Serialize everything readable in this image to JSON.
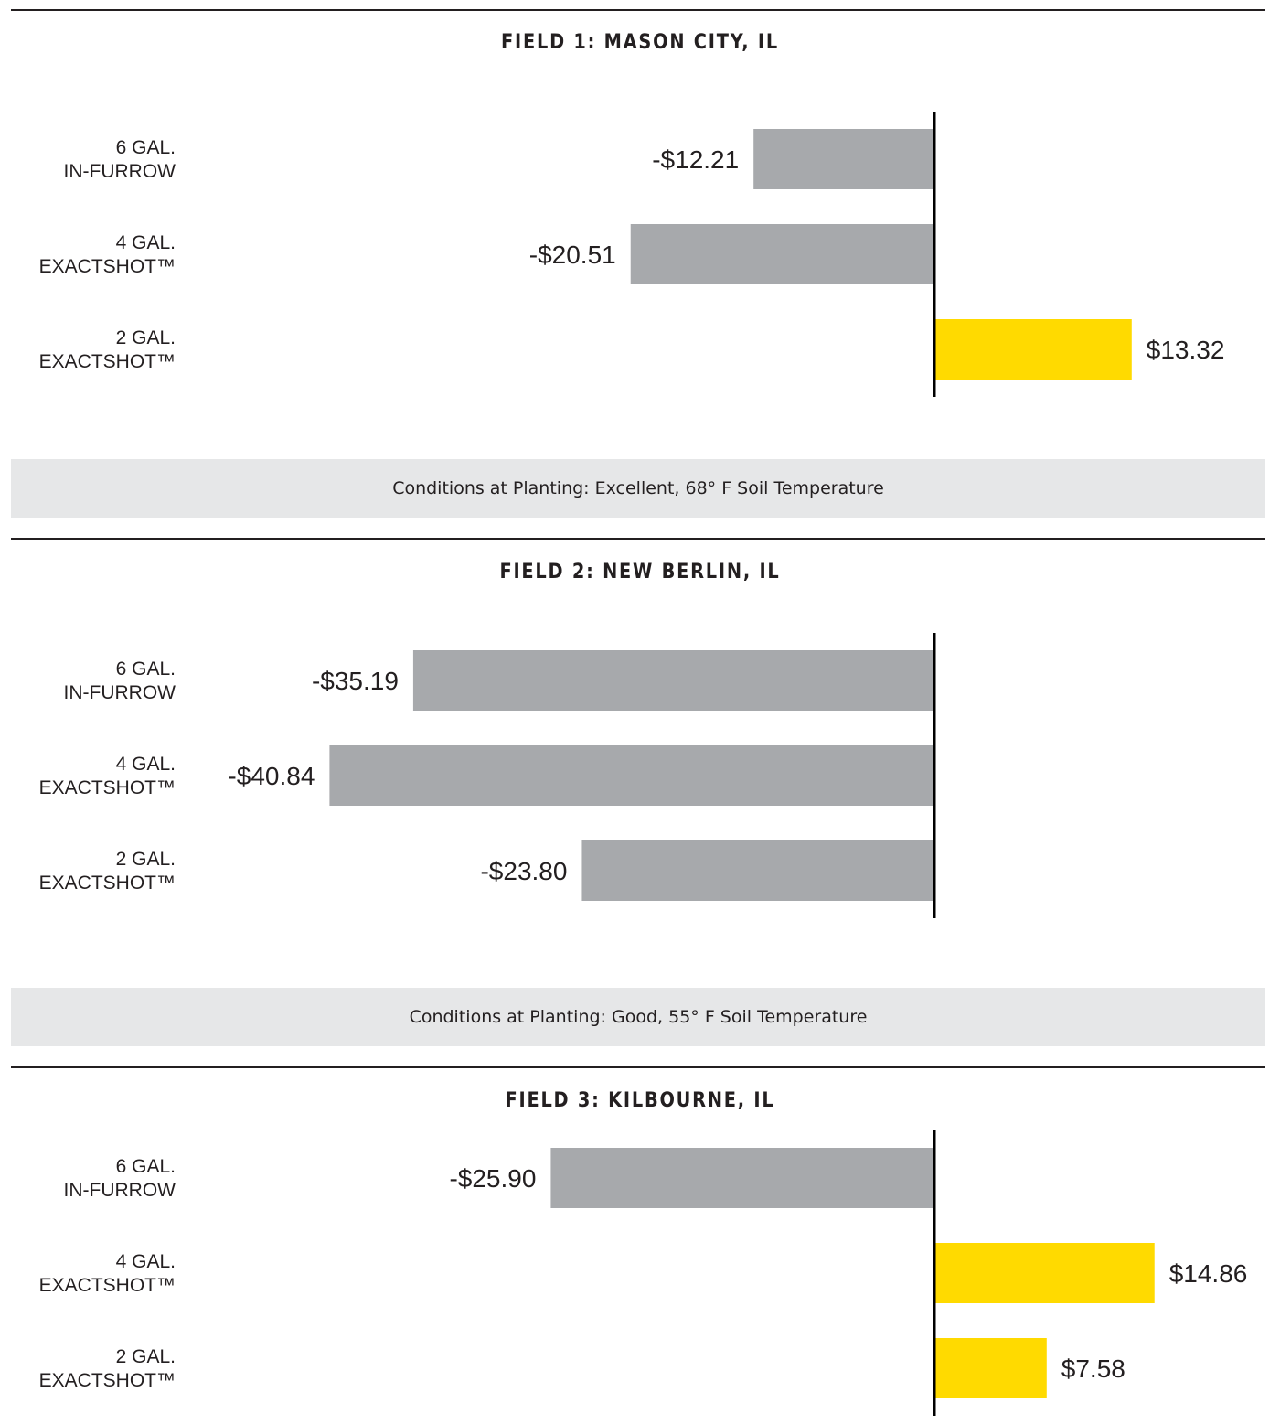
{
  "chart_data": [
    {
      "type": "bar",
      "orientation": "horizontal",
      "title": "FIELD 1: MASON CITY, IL",
      "categories": [
        [
          "6 GAL.",
          "IN-FURROW"
        ],
        [
          "4 GAL.",
          "EXACTSHOT™"
        ],
        [
          "2 GAL.",
          "EXACTSHOT™"
        ]
      ],
      "values": [
        -12.21,
        -20.51,
        13.32
      ],
      "value_labels": [
        "-$12.21",
        "-$20.51",
        "$13.32"
      ],
      "xlim": [
        -45,
        16
      ],
      "grid": false,
      "legend": "none",
      "note": "Conditions at Planting: Excellent, 68° F Soil Temperature"
    },
    {
      "type": "bar",
      "orientation": "horizontal",
      "title": "FIELD 2: NEW BERLIN, IL",
      "categories": [
        [
          "6 GAL.",
          "IN-FURROW"
        ],
        [
          "4 GAL.",
          "EXACTSHOT™"
        ],
        [
          "2 GAL.",
          "EXACTSHOT™"
        ]
      ],
      "values": [
        -35.19,
        -40.84,
        -23.8
      ],
      "value_labels": [
        "-$35.19",
        "-$40.84",
        "-$23.80"
      ],
      "xlim": [
        -45,
        16
      ],
      "grid": false,
      "legend": "none",
      "note": "Conditions at Planting: Good, 55° F Soil Temperature"
    },
    {
      "type": "bar",
      "orientation": "horizontal",
      "title": "FIELD 3: KILBOURNE, IL",
      "categories": [
        [
          "6 GAL.",
          "IN-FURROW"
        ],
        [
          "4 GAL.",
          "EXACTSHOT™"
        ],
        [
          "2 GAL.",
          "EXACTSHOT™"
        ]
      ],
      "values": [
        -25.9,
        14.86,
        7.58
      ],
      "value_labels": [
        "-$25.90",
        "$14.86",
        "$7.58"
      ],
      "xlim": [
        -45,
        16
      ],
      "grid": false,
      "legend": "none"
    }
  ],
  "colors": {
    "negative": "#a7a9ac",
    "positive": "#ffda00",
    "axis": "#000000",
    "text": "#231f20",
    "band": "#e6e7e8"
  }
}
